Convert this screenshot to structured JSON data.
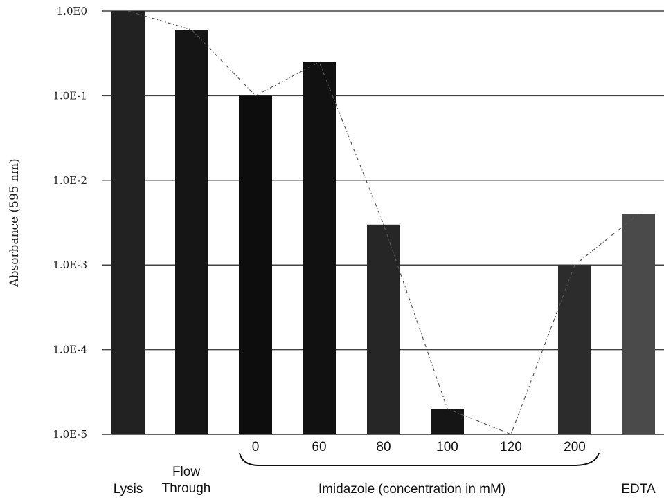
{
  "chart_data": {
    "type": "bar",
    "ylabel": "Absorbance (595 nm)",
    "yscale": "log",
    "ylim": [
      1e-05,
      1
    ],
    "yticks": [
      {
        "value": 1,
        "label": "1.0E0"
      },
      {
        "value": 0.1,
        "label": "1.0E-1"
      },
      {
        "value": 0.01,
        "label": "1.0E-2"
      },
      {
        "value": 0.001,
        "label": "1.0E-3"
      },
      {
        "value": 0.0001,
        "label": "1.0E-4"
      },
      {
        "value": 1e-05,
        "label": "1.0E-5"
      }
    ],
    "grid": true,
    "categories": [
      {
        "label": "Lysis",
        "value": 1.0,
        "color": "#222222"
      },
      {
        "label": "Flow Through",
        "value": 0.6,
        "color": "#151515"
      },
      {
        "label": "0",
        "value": 0.1,
        "color": "#0d0d0d"
      },
      {
        "label": "60",
        "value": 0.25,
        "color": "#111111"
      },
      {
        "label": "80",
        "value": 0.003,
        "color": "#262626"
      },
      {
        "label": "100",
        "value": 2e-05,
        "color": "#151515"
      },
      {
        "label": "120",
        "value": 1e-05,
        "color": "#151515"
      },
      {
        "label": "200",
        "value": 0.001,
        "color": "#2c2c2c"
      },
      {
        "label": "EDTA",
        "value": 0.004,
        "color": "#4a4a4a"
      }
    ],
    "group_label": "Imidazole (concentration in mM)",
    "trend_line": true
  }
}
